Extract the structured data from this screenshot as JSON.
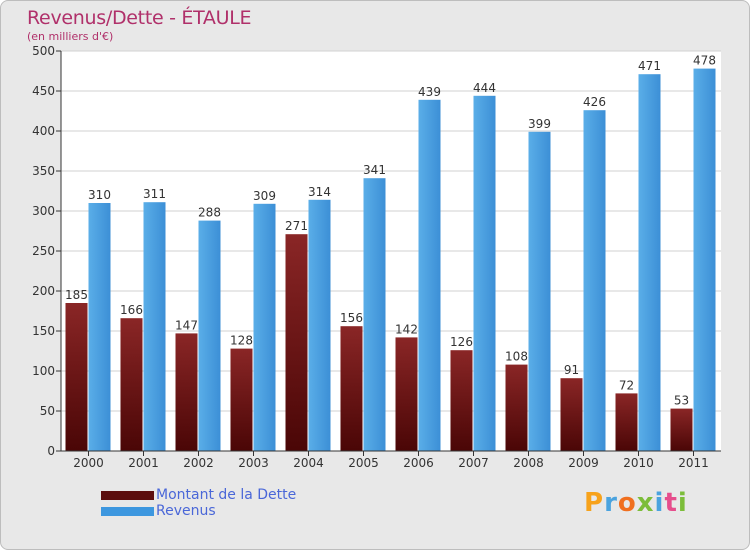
{
  "header": {
    "title": "Revenus/Dette - ÉTAULE",
    "subtitle": "(en milliers d'€)"
  },
  "chart_data": {
    "type": "bar",
    "categories": [
      "2000",
      "2001",
      "2002",
      "2003",
      "2004",
      "2005",
      "2006",
      "2007",
      "2008",
      "2009",
      "2010",
      "2011"
    ],
    "series": [
      {
        "name": "Montant de la Dette",
        "values": [
          185,
          166,
          147,
          128,
          271,
          156,
          142,
          126,
          108,
          91,
          72,
          53
        ],
        "color": "#7a1a1a"
      },
      {
        "name": "Revenus",
        "values": [
          310,
          311,
          288,
          309,
          314,
          341,
          439,
          444,
          399,
          426,
          471,
          478
        ],
        "color": "#4a9fe0"
      }
    ],
    "y_ticks": [
      "0",
      "50",
      "100",
      "150",
      "200",
      "250",
      "300",
      "350",
      "400",
      "450",
      "500"
    ],
    "ylim": [
      0,
      500
    ],
    "grid": true,
    "legend_position": "bottom-left"
  },
  "legend": {
    "items": [
      {
        "label": "Montant de la Dette",
        "color": "#5c0e0e"
      },
      {
        "label": "Revenus",
        "color": "#3d97df"
      }
    ]
  },
  "logo": {
    "letters": [
      "P",
      "r",
      "o",
      "x",
      "i",
      "t",
      "i"
    ],
    "colors": [
      "#f7a21b",
      "#4aa3df",
      "#f06f1f",
      "#7cbd3a",
      "#4aa3df",
      "#e64d8c",
      "#7cbd3a"
    ]
  }
}
